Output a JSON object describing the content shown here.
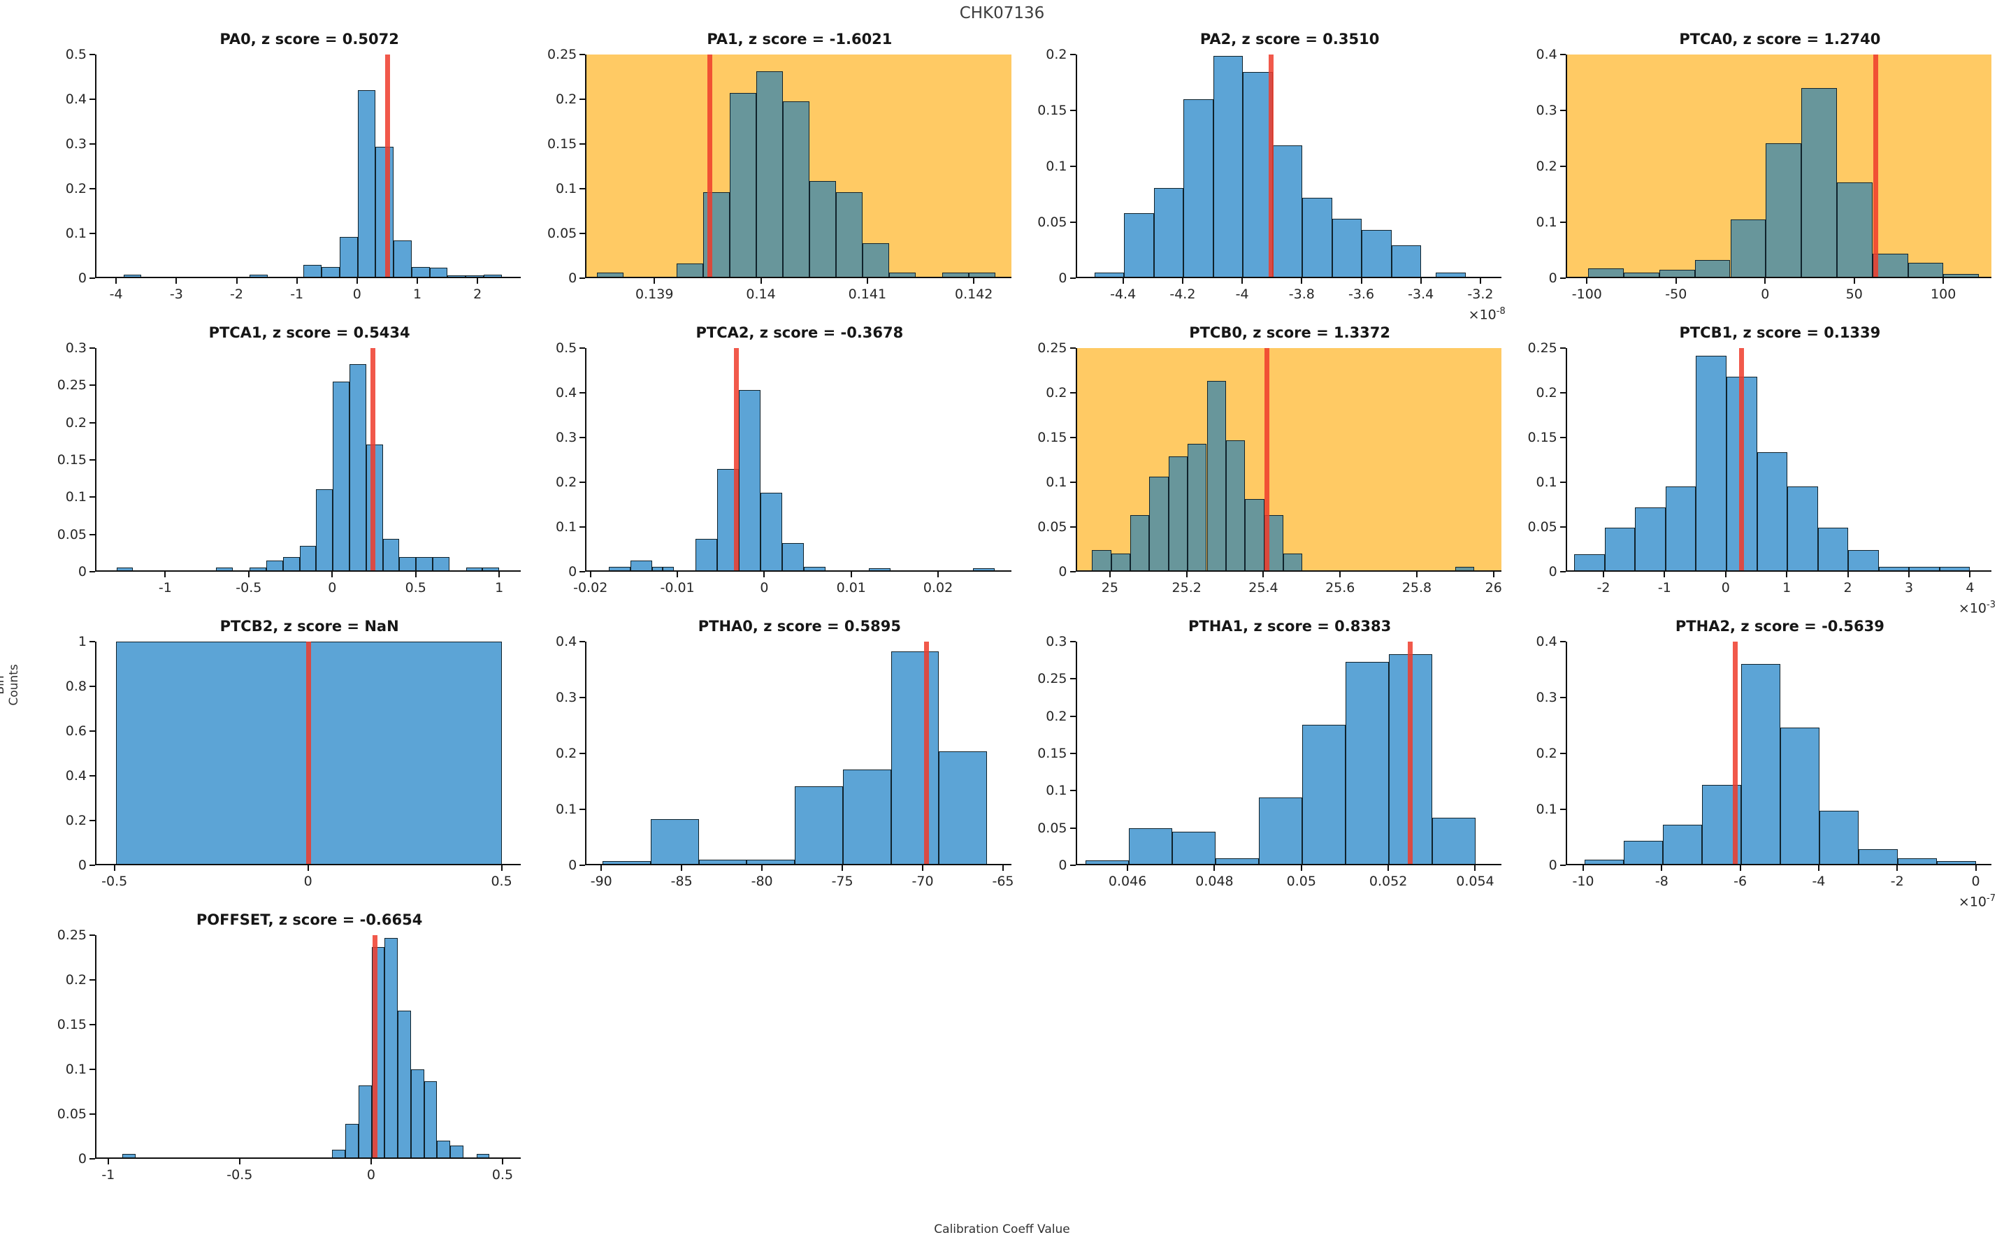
{
  "figure": {
    "title": "CHK07136",
    "ylabel": "Bin Counts",
    "xlabel": "Calibration Coeff Value"
  },
  "colors": {
    "bar_fill": "#5ca4d6",
    "bar_fill_highlight": "#68969b",
    "bar_edge": "#10222b",
    "highlight_bg": "#ffca64",
    "red_line": "#ee3c2c",
    "axis": "#0f0f0f",
    "text": "#262626"
  },
  "chart_data": [
    {
      "type": "histogram",
      "name": "PA0",
      "title": "PA0, z score = 0.5072",
      "z_score": "0.5072",
      "highlighted": false,
      "xlim": [
        -4.35,
        2.72
      ],
      "ylim": [
        0,
        0.5
      ],
      "yticks": [
        0,
        0.1,
        0.2,
        0.3,
        0.4,
        0.5
      ],
      "ytick_labels": [
        "0",
        "0.1",
        "0.2",
        "0.3",
        "0.4",
        "0.5"
      ],
      "xticks": [
        -4,
        -3,
        -2,
        -1,
        0,
        1,
        2
      ],
      "xtick_labels": [
        "-4",
        "-3",
        "-2",
        "-1",
        "0",
        "1",
        "2"
      ],
      "x_exponent": null,
      "red_line_x": 0.5,
      "bars": [
        [
          -3.9,
          -3.6,
          0.004
        ],
        [
          -1.8,
          -1.5,
          0.005
        ],
        [
          -0.9,
          -0.6,
          0.027
        ],
        [
          -0.6,
          -0.3,
          0.022
        ],
        [
          -0.3,
          0,
          0.09
        ],
        [
          0,
          0.3,
          0.42
        ],
        [
          0.3,
          0.6,
          0.292
        ],
        [
          0.6,
          0.9,
          0.081
        ],
        [
          0.9,
          1.2,
          0.022
        ],
        [
          1.2,
          1.5,
          0.02
        ],
        [
          1.5,
          1.8,
          0.003
        ],
        [
          1.8,
          2.1,
          0.003
        ],
        [
          2.1,
          2.4,
          0.004
        ]
      ]
    },
    {
      "type": "histogram",
      "name": "PA1",
      "title": "PA1, z score = -1.6021",
      "z_score": "-1.6021",
      "highlighted": true,
      "xlim": [
        0.13835,
        0.14235
      ],
      "ylim": [
        0,
        0.25
      ],
      "yticks": [
        0,
        0.05,
        0.1,
        0.15,
        0.2,
        0.25
      ],
      "ytick_labels": [
        "0",
        "0.05",
        "0.1",
        "0.15",
        "0.2",
        "0.25"
      ],
      "xticks": [
        0.139,
        0.14,
        0.141,
        0.142
      ],
      "xtick_labels": [
        "0.139",
        "0.14",
        "0.141",
        "0.142"
      ],
      "x_exponent": null,
      "red_line_x": 0.13951,
      "bars": [
        [
          0.13845,
          0.1387,
          0.005
        ],
        [
          0.1392,
          0.13945,
          0.015
        ],
        [
          0.13945,
          0.1397,
          0.095
        ],
        [
          0.1397,
          0.13995,
          0.207
        ],
        [
          0.13995,
          0.1402,
          0.231
        ],
        [
          0.1402,
          0.14045,
          0.197
        ],
        [
          0.14045,
          0.1407,
          0.108
        ],
        [
          0.1407,
          0.14095,
          0.095
        ],
        [
          0.14095,
          0.1412,
          0.038
        ],
        [
          0.1412,
          0.14145,
          0.005
        ],
        [
          0.1417,
          0.14195,
          0.005
        ],
        [
          0.14195,
          0.1422,
          0.005
        ]
      ]
    },
    {
      "type": "histogram",
      "name": "PA2",
      "title": "PA2, z score = 0.3510",
      "z_score": "0.3510",
      "highlighted": false,
      "xlim": [
        -4.56,
        -3.13
      ],
      "ylim": [
        0,
        0.2
      ],
      "yticks": [
        0,
        0.05,
        0.1,
        0.15,
        0.2
      ],
      "ytick_labels": [
        "0",
        "0.05",
        "0.1",
        "0.15",
        "0.2"
      ],
      "xticks": [
        -4.4,
        -4.2,
        -4,
        -3.8,
        -3.6,
        -3.4,
        -3.2
      ],
      "xtick_labels": [
        "-4.4",
        "-4.2",
        "-4",
        "-3.8",
        "-3.6",
        "-3.4",
        "-3.2"
      ],
      "x_exponent": "-8",
      "red_line_x": -3.905,
      "bars": [
        [
          -4.5,
          -4.4,
          0.004
        ],
        [
          -4.4,
          -4.3,
          0.057
        ],
        [
          -4.3,
          -4.2,
          0.08
        ],
        [
          -4.2,
          -4.1,
          0.16
        ],
        [
          -4.1,
          -4.0,
          0.199
        ],
        [
          -4.0,
          -3.9,
          0.184
        ],
        [
          -3.9,
          -3.8,
          0.118
        ],
        [
          -3.8,
          -3.7,
          0.071
        ],
        [
          -3.7,
          -3.6,
          0.052
        ],
        [
          -3.6,
          -3.5,
          0.042
        ],
        [
          -3.5,
          -3.4,
          0.028
        ],
        [
          -3.35,
          -3.25,
          0.004
        ]
      ]
    },
    {
      "type": "histogram",
      "name": "PTCA0",
      "title": "PTCA0, z score = 1.2740",
      "z_score": "1.2740",
      "highlighted": true,
      "xlim": [
        -112,
        127
      ],
      "ylim": [
        0,
        0.4
      ],
      "yticks": [
        0,
        0.1,
        0.2,
        0.3,
        0.4
      ],
      "ytick_labels": [
        "0",
        "0.1",
        "0.2",
        "0.3",
        "0.4"
      ],
      "xticks": [
        -100,
        -50,
        0,
        50,
        100
      ],
      "xtick_labels": [
        "-100",
        "-50",
        "0",
        "50",
        "100"
      ],
      "x_exponent": null,
      "red_line_x": 62,
      "bars": [
        [
          -100,
          -80,
          0.015
        ],
        [
          -80,
          -60,
          0.008
        ],
        [
          -60,
          -40,
          0.012
        ],
        [
          -40,
          -20,
          0.03
        ],
        [
          -20,
          0,
          0.103
        ],
        [
          0,
          20,
          0.24
        ],
        [
          20,
          40,
          0.34
        ],
        [
          40,
          60,
          0.17
        ],
        [
          60,
          80,
          0.042
        ],
        [
          80,
          100,
          0.025
        ],
        [
          100,
          120,
          0.005
        ]
      ]
    },
    {
      "type": "histogram",
      "name": "PTCA1",
      "title": "PTCA1, z score = 0.5434",
      "z_score": "0.5434",
      "highlighted": false,
      "xlim": [
        -1.42,
        1.13
      ],
      "ylim": [
        0,
        0.3
      ],
      "yticks": [
        0,
        0.05,
        0.1,
        0.15,
        0.2,
        0.25,
        0.3
      ],
      "ytick_labels": [
        "0",
        "0.05",
        "0.1",
        "0.15",
        "0.2",
        "0.25",
        "0.3"
      ],
      "xticks": [
        -1,
        -0.5,
        0,
        0.5,
        1
      ],
      "xtick_labels": [
        "-1",
        "-0.5",
        "0",
        "0.5",
        "1"
      ],
      "x_exponent": null,
      "red_line_x": 0.24,
      "bars": [
        [
          -1.3,
          -1.2,
          0.004
        ],
        [
          -0.7,
          -0.6,
          0.004
        ],
        [
          -0.5,
          -0.4,
          0.004
        ],
        [
          -0.4,
          -0.3,
          0.013
        ],
        [
          -0.3,
          -0.2,
          0.018
        ],
        [
          -0.2,
          -0.1,
          0.033
        ],
        [
          -0.1,
          0,
          0.109
        ],
        [
          0,
          0.1,
          0.255
        ],
        [
          0.1,
          0.2,
          0.278
        ],
        [
          0.2,
          0.3,
          0.17
        ],
        [
          0.3,
          0.4,
          0.042
        ],
        [
          0.4,
          0.5,
          0.018
        ],
        [
          0.5,
          0.6,
          0.018
        ],
        [
          0.6,
          0.7,
          0.018
        ],
        [
          0.8,
          0.9,
          0.004
        ],
        [
          0.9,
          1.0,
          0.004
        ]
      ]
    },
    {
      "type": "histogram",
      "name": "PTCA2",
      "title": "PTCA2, z score = -0.3678",
      "z_score": "-0.3678",
      "highlighted": false,
      "xlim": [
        -0.0206,
        0.0284
      ],
      "ylim": [
        0,
        0.5
      ],
      "yticks": [
        0,
        0.1,
        0.2,
        0.3,
        0.4,
        0.5
      ],
      "ytick_labels": [
        "0",
        "0.1",
        "0.2",
        "0.3",
        "0.4",
        "0.5"
      ],
      "xticks": [
        -0.02,
        -0.01,
        0,
        0.01,
        0.02
      ],
      "xtick_labels": [
        "-0.02",
        "-0.01",
        "0",
        "0.01",
        "0.02"
      ],
      "x_exponent": null,
      "red_line_x": -0.0033,
      "bars": [
        [
          -0.018,
          -0.0155,
          0.008
        ],
        [
          -0.0155,
          -0.013,
          0.022
        ],
        [
          -0.013,
          -0.0118,
          0.008
        ],
        [
          -0.0118,
          -0.0105,
          0.008
        ],
        [
          -0.008,
          -0.0055,
          0.07
        ],
        [
          -0.0055,
          -0.003,
          0.228
        ],
        [
          -0.003,
          -0.0005,
          0.405
        ],
        [
          -0.0005,
          0.002,
          0.175
        ],
        [
          0.002,
          0.0045,
          0.062
        ],
        [
          0.0045,
          0.007,
          0.008
        ],
        [
          0.012,
          0.0145,
          0.004
        ],
        [
          0.024,
          0.0265,
          0.004
        ]
      ]
    },
    {
      "type": "histogram",
      "name": "PTCB0",
      "title": "PTCB0, z score = 1.3372",
      "z_score": "1.3372",
      "highlighted": true,
      "xlim": [
        24.91,
        26.02
      ],
      "ylim": [
        0,
        0.25
      ],
      "yticks": [
        0,
        0.05,
        0.1,
        0.15,
        0.2,
        0.25
      ],
      "ytick_labels": [
        "0",
        "0.05",
        "0.1",
        "0.15",
        "0.2",
        "0.25"
      ],
      "xticks": [
        25,
        25.2,
        25.4,
        25.6,
        25.8,
        26
      ],
      "xtick_labels": [
        "25",
        "25.2",
        "25.4",
        "25.6",
        "25.8",
        "26"
      ],
      "x_exponent": null,
      "red_line_x": 25.407,
      "bars": [
        [
          24.95,
          25.0,
          0.023
        ],
        [
          25.0,
          25.05,
          0.019
        ],
        [
          25.05,
          25.1,
          0.062
        ],
        [
          25.1,
          25.15,
          0.105
        ],
        [
          25.15,
          25.2,
          0.128
        ],
        [
          25.2,
          25.25,
          0.142
        ],
        [
          25.25,
          25.3,
          0.213
        ],
        [
          25.3,
          25.35,
          0.146
        ],
        [
          25.35,
          25.4,
          0.08
        ],
        [
          25.4,
          25.45,
          0.062
        ],
        [
          25.45,
          25.5,
          0.019
        ],
        [
          25.9,
          25.95,
          0.004
        ]
      ]
    },
    {
      "type": "histogram",
      "name": "PTCB1",
      "title": "PTCB1, z score = 0.1339",
      "z_score": "0.1339",
      "highlighted": false,
      "xlim": [
        -2.62,
        4.35
      ],
      "ylim": [
        0,
        0.25
      ],
      "yticks": [
        0,
        0.05,
        0.1,
        0.15,
        0.2,
        0.25
      ],
      "ytick_labels": [
        "0",
        "0.05",
        "0.1",
        "0.15",
        "0.2",
        "0.25"
      ],
      "xticks": [
        -2,
        -1,
        0,
        1,
        2,
        3,
        4
      ],
      "xtick_labels": [
        "-2",
        "-1",
        "0",
        "1",
        "2",
        "3",
        "4"
      ],
      "x_exponent": "-3",
      "red_line_x": 0.25,
      "bars": [
        [
          -2.5,
          -2,
          0.018
        ],
        [
          -2,
          -1.5,
          0.048
        ],
        [
          -1.5,
          -1,
          0.071
        ],
        [
          -1,
          -0.5,
          0.094
        ],
        [
          -0.5,
          0,
          0.241
        ],
        [
          0,
          0.5,
          0.218
        ],
        [
          0.5,
          1,
          0.133
        ],
        [
          1,
          1.5,
          0.094
        ],
        [
          1.5,
          2,
          0.048
        ],
        [
          2,
          2.5,
          0.023
        ],
        [
          2.5,
          3,
          0.004
        ],
        [
          3,
          3.5,
          0.004
        ],
        [
          3.5,
          4,
          0.004
        ]
      ]
    },
    {
      "type": "histogram",
      "name": "PTCB2",
      "title": "PTCB2, z score = NaN",
      "z_score": "NaN",
      "highlighted": false,
      "xlim": [
        -0.55,
        0.55
      ],
      "ylim": [
        0,
        1
      ],
      "yticks": [
        0,
        0.2,
        0.4,
        0.6,
        0.8,
        1
      ],
      "ytick_labels": [
        "0",
        "0.2",
        "0.4",
        "0.6",
        "0.8",
        "1"
      ],
      "xticks": [
        -0.5,
        0,
        0.5
      ],
      "xtick_labels": [
        "-0.5",
        "0",
        "0.5"
      ],
      "x_exponent": null,
      "red_line_x": 0,
      "bars": [
        [
          -0.5,
          0.5,
          1
        ]
      ]
    },
    {
      "type": "histogram",
      "name": "PTHA0",
      "title": "PTHA0, z score = 0.5895",
      "z_score": "0.5895",
      "highlighted": false,
      "xlim": [
        -91,
        -64.5
      ],
      "ylim": [
        0,
        0.4
      ],
      "yticks": [
        0,
        0.1,
        0.2,
        0.3,
        0.4
      ],
      "ytick_labels": [
        "0",
        "0.1",
        "0.2",
        "0.3",
        "0.4"
      ],
      "xticks": [
        -90,
        -85,
        -80,
        -75,
        -70,
        -65
      ],
      "xtick_labels": [
        "-90",
        "-85",
        "-80",
        "-75",
        "-70",
        "-65"
      ],
      "x_exponent": null,
      "red_line_x": -69.8,
      "bars": [
        [
          -90,
          -87,
          0.005
        ],
        [
          -87,
          -84,
          0.08
        ],
        [
          -84,
          -81,
          0.008
        ],
        [
          -81,
          -78,
          0.008
        ],
        [
          -78,
          -75,
          0.14
        ],
        [
          -75,
          -72,
          0.17
        ],
        [
          -72,
          -69,
          0.383
        ],
        [
          -69,
          -66,
          0.203
        ]
      ]
    },
    {
      "type": "histogram",
      "name": "PTHA1",
      "title": "PTHA1, z score = 0.8383",
      "z_score": "0.8383",
      "highlighted": false,
      "xlim": [
        0.0448,
        0.0546
      ],
      "ylim": [
        0,
        0.3
      ],
      "yticks": [
        0,
        0.05,
        0.1,
        0.15,
        0.2,
        0.25,
        0.3
      ],
      "ytick_labels": [
        "0",
        "0.05",
        "0.1",
        "0.15",
        "0.2",
        "0.25",
        "0.3"
      ],
      "xticks": [
        0.046,
        0.048,
        0.05,
        0.052,
        0.054
      ],
      "xtick_labels": [
        "0.046",
        "0.048",
        "0.05",
        "0.052",
        "0.054"
      ],
      "x_exponent": null,
      "red_line_x": 0.0525,
      "bars": [
        [
          0.045,
          0.046,
          0.005
        ],
        [
          0.046,
          0.047,
          0.048
        ],
        [
          0.047,
          0.048,
          0.043
        ],
        [
          0.048,
          0.049,
          0.008
        ],
        [
          0.049,
          0.05,
          0.09
        ],
        [
          0.05,
          0.051,
          0.188
        ],
        [
          0.051,
          0.052,
          0.273
        ],
        [
          0.052,
          0.053,
          0.283
        ],
        [
          0.053,
          0.054,
          0.062
        ]
      ]
    },
    {
      "type": "histogram",
      "name": "PTHA2",
      "title": "PTHA2, z score = -0.5639",
      "z_score": "-0.5639",
      "highlighted": false,
      "xlim": [
        -10.45,
        0.4
      ],
      "ylim": [
        0,
        0.4
      ],
      "yticks": [
        0,
        0.1,
        0.2,
        0.3,
        0.4
      ],
      "ytick_labels": [
        "0",
        "0.1",
        "0.2",
        "0.3",
        "0.4"
      ],
      "xticks": [
        -10,
        -8,
        -6,
        -4,
        -2,
        0
      ],
      "xtick_labels": [
        "-10",
        "-8",
        "-6",
        "-4",
        "-2",
        "0"
      ],
      "x_exponent": "-7",
      "red_line_x": -6.15,
      "bars": [
        [
          -10,
          -9,
          0.008
        ],
        [
          -9,
          -8,
          0.042
        ],
        [
          -8,
          -7,
          0.07
        ],
        [
          -7,
          -6,
          0.142
        ],
        [
          -6,
          -5,
          0.36
        ],
        [
          -5,
          -4,
          0.245
        ],
        [
          -4,
          -3,
          0.095
        ],
        [
          -3,
          -2,
          0.027
        ],
        [
          -2,
          -1,
          0.01
        ],
        [
          -1,
          0,
          0.005
        ]
      ]
    },
    {
      "type": "histogram",
      "name": "POFFSET",
      "title": "POFFSET, z score = -0.6654",
      "z_score": "-0.6654",
      "highlighted": false,
      "xlim": [
        -1.05,
        0.57
      ],
      "ylim": [
        0,
        0.25
      ],
      "yticks": [
        0,
        0.05,
        0.1,
        0.15,
        0.2,
        0.25
      ],
      "ytick_labels": [
        "0",
        "0.05",
        "0.1",
        "0.15",
        "0.2",
        "0.25"
      ],
      "xticks": [
        -1,
        -0.5,
        0,
        0.5
      ],
      "xtick_labels": [
        "-1",
        "-0.5",
        "0",
        "0.5"
      ],
      "x_exponent": null,
      "red_line_x": 0.012,
      "bars": [
        [
          -0.95,
          -0.9,
          0.004
        ],
        [
          -0.15,
          -0.1,
          0.009
        ],
        [
          -0.1,
          -0.05,
          0.038
        ],
        [
          -0.05,
          0,
          0.081
        ],
        [
          0,
          0.05,
          0.237
        ],
        [
          0.05,
          0.1,
          0.247
        ],
        [
          0.1,
          0.15,
          0.165
        ],
        [
          0.15,
          0.2,
          0.099
        ],
        [
          0.2,
          0.25,
          0.086
        ],
        [
          0.25,
          0.3,
          0.019
        ],
        [
          0.3,
          0.35,
          0.013
        ],
        [
          0.4,
          0.45,
          0.004
        ]
      ]
    }
  ]
}
